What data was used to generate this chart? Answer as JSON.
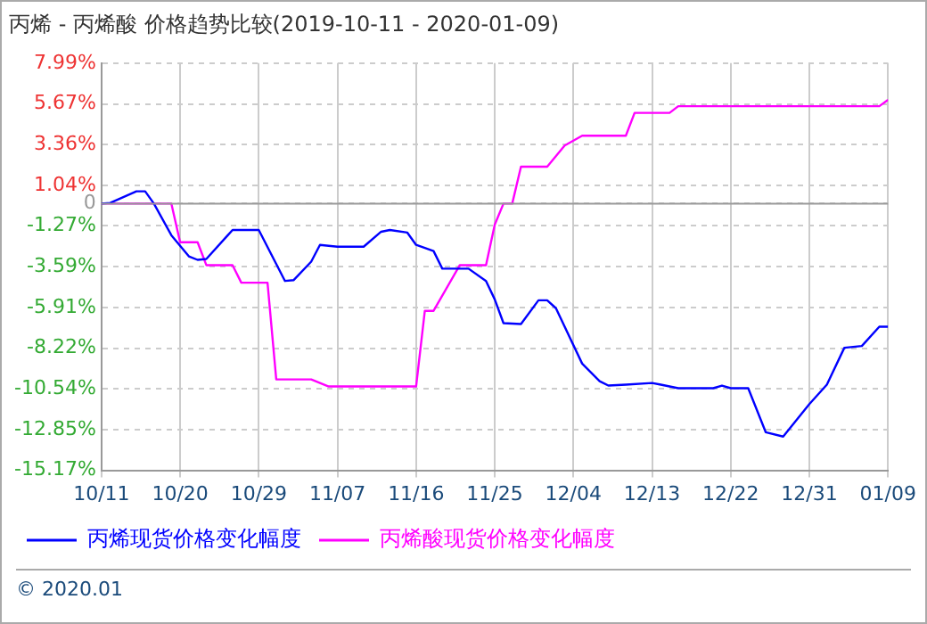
{
  "chart_data": {
    "type": "line",
    "title": "丙烯 - 丙烯酸 价格趋势比较(2019-10-11 - 2020-01-09)",
    "series": [
      {
        "name": "丙烯现货价格变化幅度",
        "color": "#0000ff",
        "x": [
          "2019-10-11",
          "2019-10-12",
          "2019-10-15",
          "2019-10-16",
          "2019-10-17",
          "2019-10-19",
          "2019-10-21",
          "2019-10-22",
          "2019-10-23",
          "2019-10-26",
          "2019-10-29",
          "2019-11-01",
          "2019-11-02",
          "2019-11-04",
          "2019-11-05",
          "2019-11-07",
          "2019-11-10",
          "2019-11-12",
          "2019-11-13",
          "2019-11-15",
          "2019-11-16",
          "2019-11-18",
          "2019-11-19",
          "2019-11-22",
          "2019-11-24",
          "2019-11-25",
          "2019-11-26",
          "2019-11-28",
          "2019-11-30",
          "2019-12-01",
          "2019-12-02",
          "2019-12-05",
          "2019-12-07",
          "2019-12-08",
          "2019-12-10",
          "2019-12-13",
          "2019-12-14",
          "2019-12-16",
          "2019-12-20",
          "2019-12-21",
          "2019-12-22",
          "2019-12-24",
          "2019-12-26",
          "2019-12-28",
          "2019-12-31",
          "2020-01-02",
          "2020-01-04",
          "2020-01-06",
          "2020-01-08",
          "2020-01-09"
        ],
        "values": [
          0,
          0.04,
          0.7,
          0.7,
          0,
          -1.8,
          -3.0,
          -3.2,
          -3.15,
          -1.5,
          -1.5,
          -4.4,
          -4.35,
          -3.3,
          -2.35,
          -2.45,
          -2.45,
          -1.6,
          -1.5,
          -1.65,
          -2.35,
          -2.7,
          -3.7,
          -3.7,
          -4.4,
          -5.45,
          -6.8,
          -6.85,
          -5.5,
          -5.5,
          -5.95,
          -9.1,
          -10.1,
          -10.35,
          -10.3,
          -10.2,
          -10.3,
          -10.5,
          -10.5,
          -10.35,
          -10.5,
          -10.5,
          -13.0,
          -13.25,
          -11.4,
          -10.3,
          -8.2,
          -8.1,
          -7.0,
          -7.0
        ]
      },
      {
        "name": "丙烯酸现货价格变化幅度",
        "color": "#ff00ff",
        "x": [
          "2019-10-11",
          "2019-10-19",
          "2019-10-20",
          "2019-10-22",
          "2019-10-23",
          "2019-10-26",
          "2019-10-27",
          "2019-10-30",
          "2019-10-31",
          "2019-11-04",
          "2019-11-06",
          "2019-11-16",
          "2019-11-17",
          "2019-11-18",
          "2019-11-21",
          "2019-11-24",
          "2019-11-25",
          "2019-11-26",
          "2019-11-27",
          "2019-11-28",
          "2019-12-01",
          "2019-12-03",
          "2019-12-05",
          "2019-12-10",
          "2019-12-11",
          "2019-12-15",
          "2019-12-16",
          "2020-01-08",
          "2020-01-09"
        ],
        "values": [
          0,
          0,
          -2.2,
          -2.2,
          -3.5,
          -3.5,
          -4.5,
          -4.5,
          -10.0,
          -10.0,
          -10.4,
          -10.4,
          -6.1,
          -6.1,
          -3.5,
          -3.5,
          -1.2,
          0,
          0,
          2.1,
          2.1,
          3.3,
          3.86,
          3.86,
          5.16,
          5.16,
          5.54,
          5.54,
          5.9
        ]
      }
    ],
    "xlim": [
      "2019-10-11",
      "2020-01-09"
    ],
    "xticks": [
      {
        "value": "2019-10-11",
        "label": "10/11"
      },
      {
        "value": "2019-10-20",
        "label": "10/20"
      },
      {
        "value": "2019-10-29",
        "label": "10/29"
      },
      {
        "value": "2019-11-07",
        "label": "11/07"
      },
      {
        "value": "2019-11-16",
        "label": "11/16"
      },
      {
        "value": "2019-11-25",
        "label": "11/25"
      },
      {
        "value": "2019-12-04",
        "label": "12/04"
      },
      {
        "value": "2019-12-13",
        "label": "12/13"
      },
      {
        "value": "2019-12-22",
        "label": "12/22"
      },
      {
        "value": "2019-12-31",
        "label": "12/31"
      },
      {
        "value": "2020-01-09",
        "label": "01/09"
      }
    ],
    "ylim": [
      -15.17,
      7.99
    ],
    "yticks": [
      {
        "value": 7.99,
        "label": "7.99%"
      },
      {
        "value": 5.67,
        "label": "5.67%"
      },
      {
        "value": 3.36,
        "label": "3.36%"
      },
      {
        "value": 1.04,
        "label": "1.04%"
      },
      0,
      {
        "value": -1.27,
        "label": "-1.27%"
      },
      {
        "value": -3.59,
        "label": "-3.59%"
      },
      {
        "value": -5.91,
        "label": "-5.91%"
      },
      {
        "value": -8.22,
        "label": "-8.22%"
      },
      {
        "value": -10.54,
        "label": "-10.54%"
      },
      {
        "value": -12.85,
        "label": "-12.85%"
      },
      {
        "value": -15.17,
        "label": "-15.17%"
      }
    ],
    "ref_lines": [
      {
        "axis": "y",
        "value": 0,
        "color": "#999999"
      }
    ],
    "grid": true,
    "legend": "bottom",
    "marker": "none",
    "line_style": "solid",
    "annotations": [
      "© 2020.01"
    ]
  }
}
